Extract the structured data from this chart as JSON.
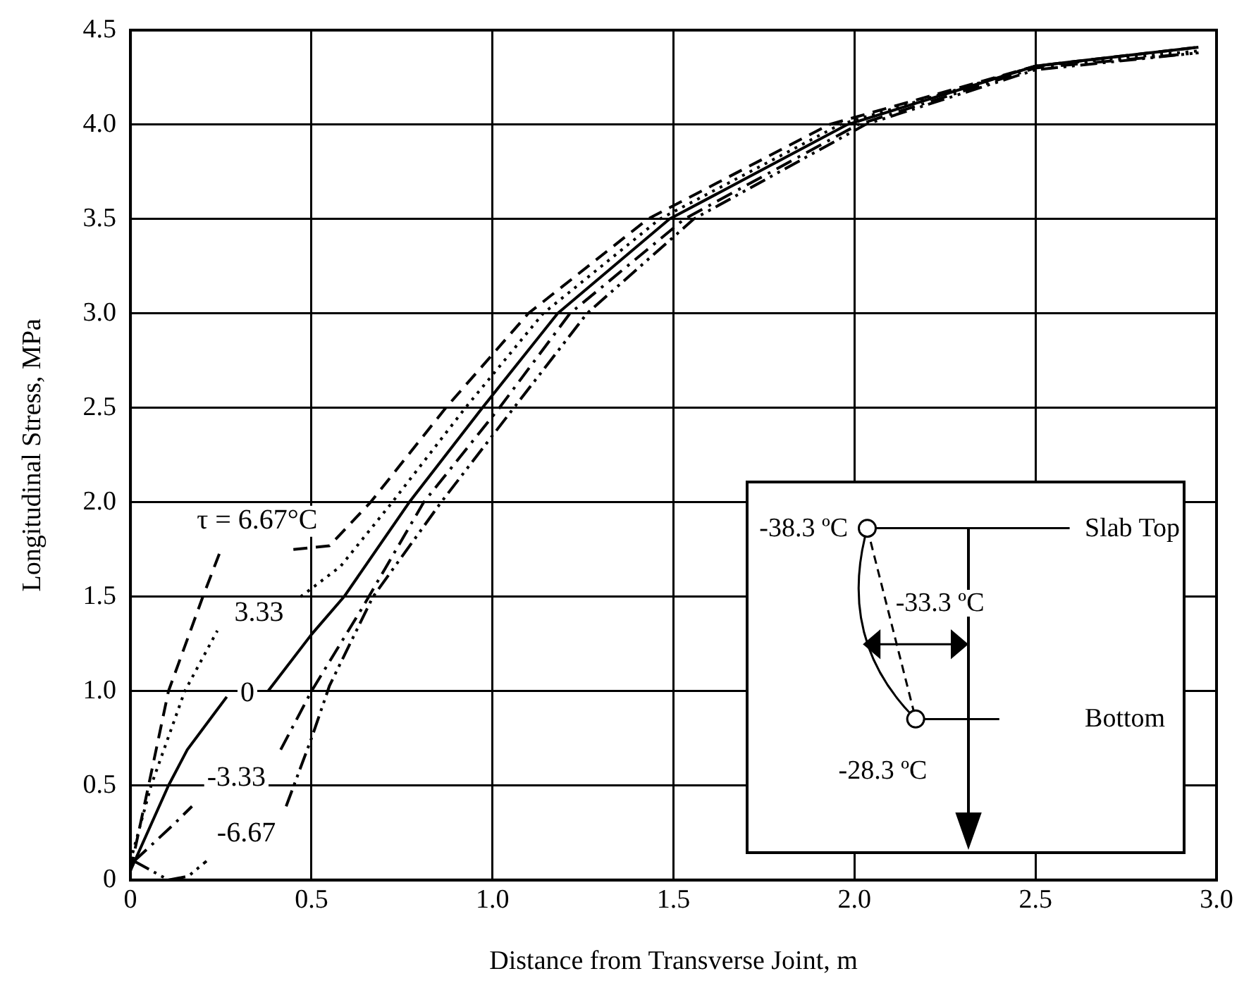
{
  "chart_data": {
    "type": "line",
    "xlabel": "Distance from Transverse Joint, m",
    "ylabel": "Longitudinal Stress, MPa",
    "xlim": [
      0,
      3
    ],
    "xticks": [
      0,
      0.5,
      {
        "value": 1,
        "label": "1.0"
      },
      1.5,
      {
        "value": 2,
        "label": "2.0"
      },
      2.5,
      {
        "value": 3,
        "label": "3.0"
      }
    ],
    "ylim": [
      0,
      4.5
    ],
    "yticks": [
      0,
      0.5,
      {
        "value": 1,
        "label": "1.0"
      },
      1.5,
      {
        "value": 2,
        "label": "2.0"
      },
      2.5,
      {
        "value": 3,
        "label": "3.0"
      },
      3.5,
      {
        "value": 4,
        "label": "4.0"
      },
      4.5
    ],
    "grid": true,
    "legend": false,
    "marker": "none",
    "series": [
      {
        "name": "τ = 6.67°C",
        "color": "#000000",
        "line_style": "dashed",
        "x": [
          0,
          0.05,
          0.105,
          0.2,
          0.25,
          0.35,
          0.45,
          0.55,
          0.663,
          0.871,
          1.099,
          1.429,
          1.93,
          2.5,
          2.95
        ],
        "values": [
          0.05,
          0.5,
          1.0,
          1.5,
          1.75,
          null,
          1.75,
          1.77,
          2.0,
          2.5,
          3.0,
          3.5,
          4.0,
          4.31,
          4.41
        ]
      },
      {
        "name": "3.33",
        "color": "#000000",
        "line_style": "dotted",
        "x": [
          0,
          0.057,
          0.15,
          0.24,
          0.35,
          0.47,
          0.58,
          0.723,
          0.925,
          1.14,
          1.462,
          1.96,
          2.5,
          2.95
        ],
        "values": [
          0.1,
          0.5,
          1.0,
          1.32,
          null,
          1.5,
          1.66,
          2.0,
          2.5,
          3.0,
          3.5,
          4.0,
          4.31,
          4.39
        ]
      },
      {
        "name": "0",
        "color": "#000000",
        "line_style": "solid",
        "x": [
          0,
          0.105,
          0.157,
          0.266,
          0.32,
          0.38,
          0.5,
          0.59,
          0.77,
          0.972,
          1.18,
          1.489,
          1.98,
          2.5,
          2.95
        ],
        "values": [
          0.05,
          0.5,
          0.69,
          0.97,
          null,
          1.0,
          1.3,
          1.5,
          2.0,
          2.5,
          3.0,
          3.5,
          4.0,
          4.31,
          4.41
        ]
      },
      {
        "name": "-3.33",
        "color": "#000000",
        "line_style": "dashdot",
        "x": [
          0.01,
          0.117,
          0.17,
          0.29,
          0.415,
          0.5,
          0.64,
          0.81,
          1.019,
          1.214,
          1.53,
          2.01,
          2.5,
          2.95
        ],
        "values": [
          0.1,
          0.29,
          0.39,
          null,
          0.69,
          1.0,
          1.44,
          2.0,
          2.5,
          3.0,
          3.5,
          4.0,
          4.3,
          4.38
        ]
      },
      {
        "name": "-6.67",
        "color": "#000000",
        "line_style": "dashdotdot",
        "x": [
          0.01,
          0.105,
          0.16,
          0.21,
          0.32,
          0.43,
          0.5,
          0.55,
          0.67,
          0.858,
          1.059,
          1.261,
          1.556,
          2.03,
          2.5,
          2.95
        ],
        "values": [
          0.1,
          0.0,
          0.02,
          0.1,
          null,
          0.39,
          0.75,
          1.03,
          1.5,
          2.0,
          2.5,
          3.0,
          3.5,
          4.0,
          4.29,
          4.38
        ]
      }
    ],
    "annotations": [
      "-38.3 ºC",
      "Slab Top",
      "-33.3 ºC",
      "Bottom",
      "-28.3 ºC"
    ]
  }
}
